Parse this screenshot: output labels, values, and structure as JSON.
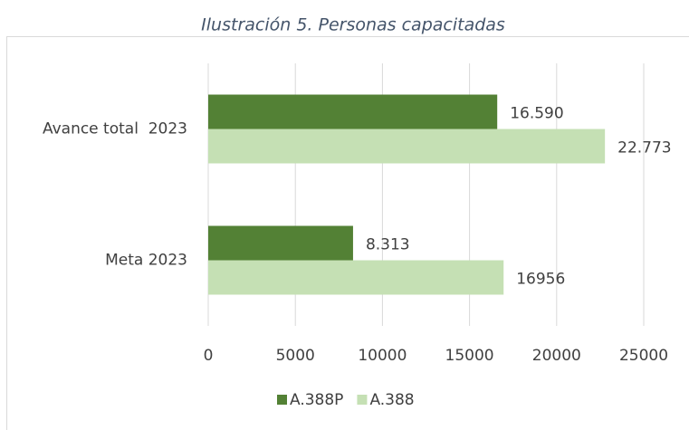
{
  "chart_data": {
    "type": "barh",
    "title": "Ilustración 5. Personas capacitadas",
    "categories": [
      "Avance total  2023",
      "Meta 2023"
    ],
    "series": [
      {
        "name": "A.388P",
        "color": "#538135",
        "values": [
          16590,
          8313
        ],
        "value_labels": [
          "16.590",
          "8.313"
        ]
      },
      {
        "name": "A.388",
        "color": "#c5e0b4",
        "values": [
          22773,
          16956
        ],
        "value_labels": [
          "22.773",
          "16956"
        ]
      }
    ],
    "xlim": [
      0,
      25000
    ],
    "xticks": [
      0,
      5000,
      10000,
      15000,
      20000,
      25000
    ],
    "grid": true,
    "legend": "bottom"
  }
}
